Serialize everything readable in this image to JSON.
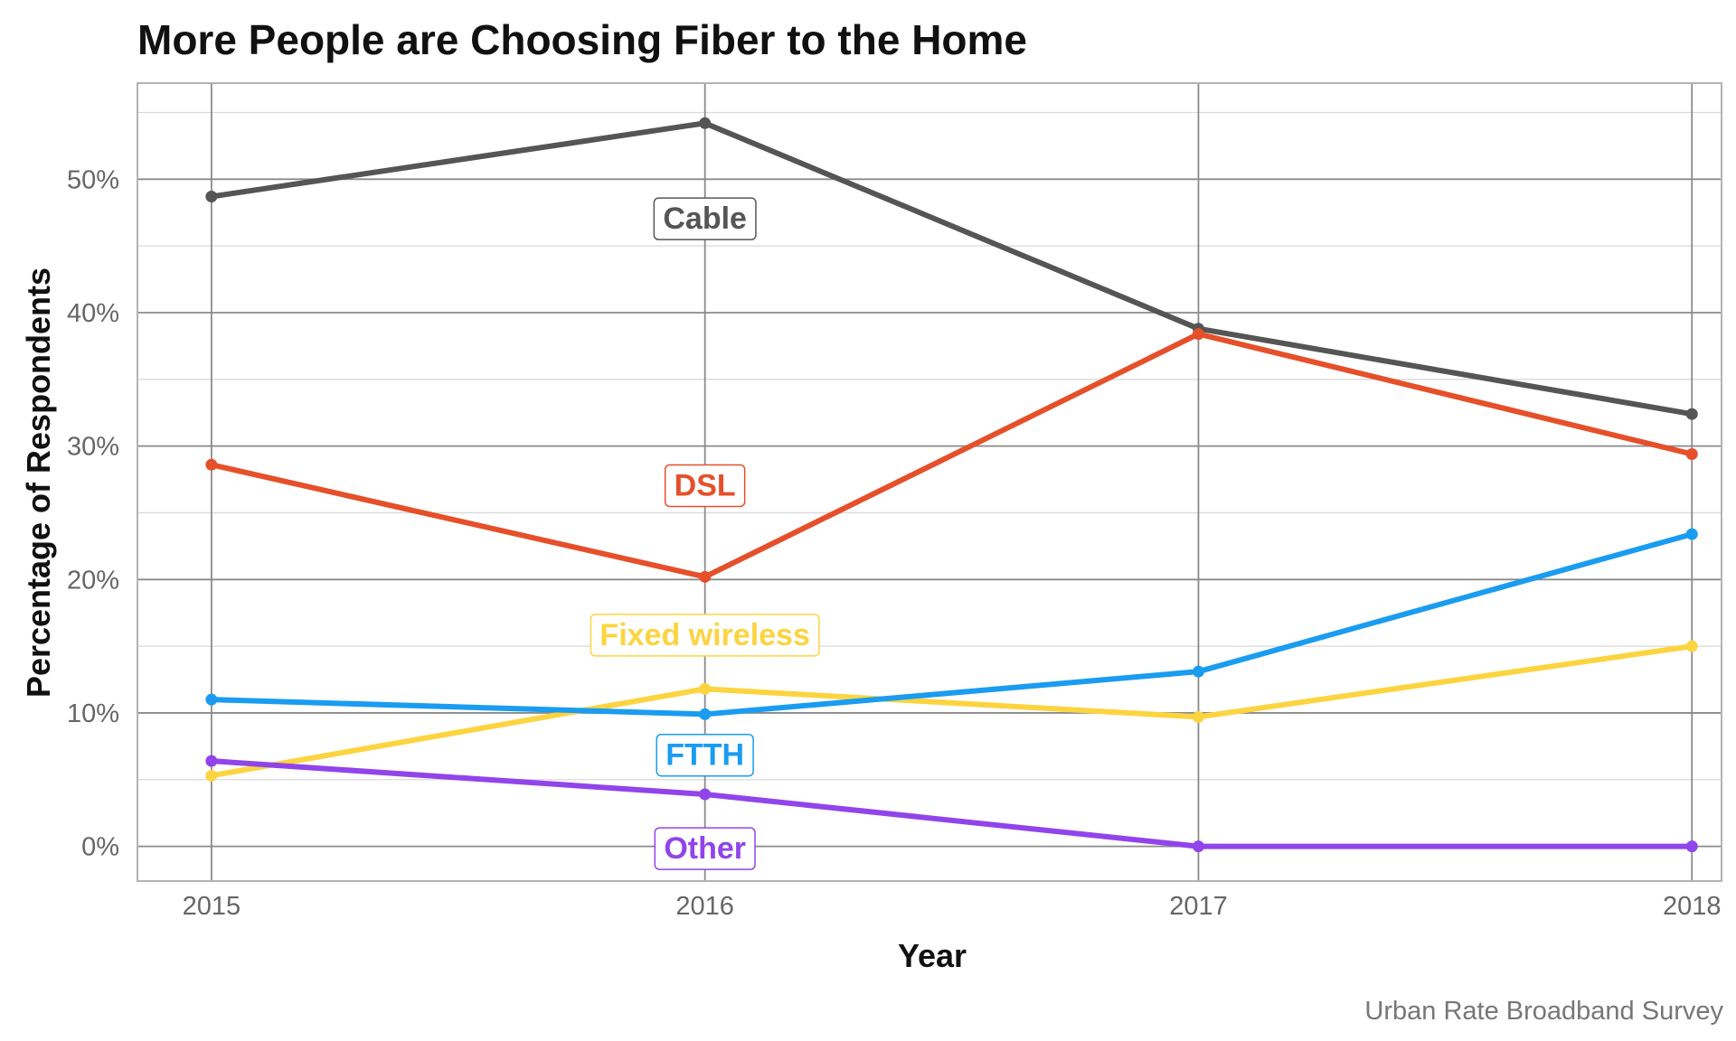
{
  "chart_data": {
    "type": "line",
    "title": "More People are Choosing Fiber to the Home",
    "xlabel": "Year",
    "ylabel": "Percentage of Respondents",
    "caption": "Urban Rate Broadband Survey",
    "x": [
      "2015",
      "2016",
      "2017",
      "2018"
    ],
    "xlim": [
      2014.85,
      2018.06
    ],
    "ylim": [
      -2.6,
      57.2
    ],
    "yticks": [
      0,
      10,
      20,
      30,
      40,
      50
    ],
    "ytick_labels": [
      "0%",
      "10%",
      "20%",
      "30%",
      "40%",
      "50%"
    ],
    "grid": true,
    "legend": "direct labels on lines",
    "series": [
      {
        "name": "Cable",
        "color": "#555555",
        "values": [
          48.7,
          54.2,
          38.8,
          32.4
        ],
        "label_x": "2016",
        "label_y": 47.1
      },
      {
        "name": "DSL",
        "color": "#e5502a",
        "values": [
          28.6,
          20.2,
          38.4,
          29.4
        ],
        "label_x": "2016",
        "label_y": 27.1
      },
      {
        "name": "Fixed wireless",
        "color": "#fcd440",
        "values": [
          5.3,
          11.8,
          9.7,
          15.0
        ],
        "label_x": "2016",
        "label_y": 15.9
      },
      {
        "name": "FTTH",
        "color": "#1a9cf0",
        "values": [
          11.0,
          9.9,
          13.1,
          23.4
        ],
        "label_x": "2016",
        "label_y": 6.9
      },
      {
        "name": "Other",
        "color": "#9144ea",
        "values": [
          6.4,
          3.9,
          0.0,
          0.0
        ],
        "label_x": "2016",
        "label_y": -0.1
      }
    ]
  }
}
